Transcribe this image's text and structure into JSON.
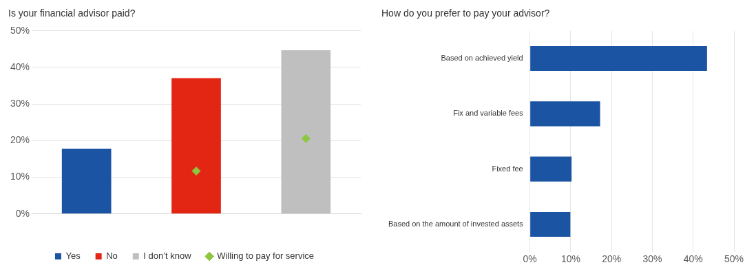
{
  "chart_data": [
    {
      "type": "bar",
      "title": "Is your financial advisor paid?",
      "categories": [
        null,
        null,
        null
      ],
      "legend": "bottom",
      "grid": "y",
      "marker": "diamond",
      "series": [
        {
          "name": "Yes",
          "color": "#1c54a4",
          "values": [
            17.8,
            null,
            null
          ]
        },
        {
          "name": "No",
          "color": "#e32614",
          "values": [
            null,
            37.1,
            null
          ]
        },
        {
          "name": "I don’t know",
          "color": "#bfbfbf",
          "values": [
            null,
            null,
            44.7
          ]
        },
        {
          "name": "Willing to pay for service",
          "type": "scatter",
          "color": "#8dc63f",
          "values": [
            null,
            11.7,
            20.6
          ]
        }
      ],
      "ylim": [
        0,
        50
      ],
      "yticks": [
        {
          "value": 0,
          "label": "0%"
        },
        {
          "value": 10,
          "label": "10%"
        },
        {
          "value": 20,
          "label": "20%"
        },
        {
          "value": 30,
          "label": "30%"
        },
        {
          "value": 40,
          "label": "40%"
        },
        {
          "value": 50,
          "label": "50%"
        }
      ]
    },
    {
      "type": "bar",
      "title": "How do you prefer to pay your advisor?",
      "orientation": "horizontal",
      "grid": "x",
      "categories": [
        "Based on achieved yield",
        "Fix and variable fees",
        "Fixed fee",
        "Based on the amount of invested assets"
      ],
      "values": [
        43.4,
        17.2,
        10.2,
        9.9
      ],
      "color": "#1c54a4",
      "xlim": [
        0,
        50
      ],
      "xticks": [
        {
          "value": 0,
          "label": "0%"
        },
        {
          "value": 10,
          "label": "10%"
        },
        {
          "value": 20,
          "label": "20%"
        },
        {
          "value": 30,
          "label": "30%"
        },
        {
          "value": 40,
          "label": "40%"
        },
        {
          "value": 50,
          "label": "50%"
        }
      ]
    }
  ]
}
